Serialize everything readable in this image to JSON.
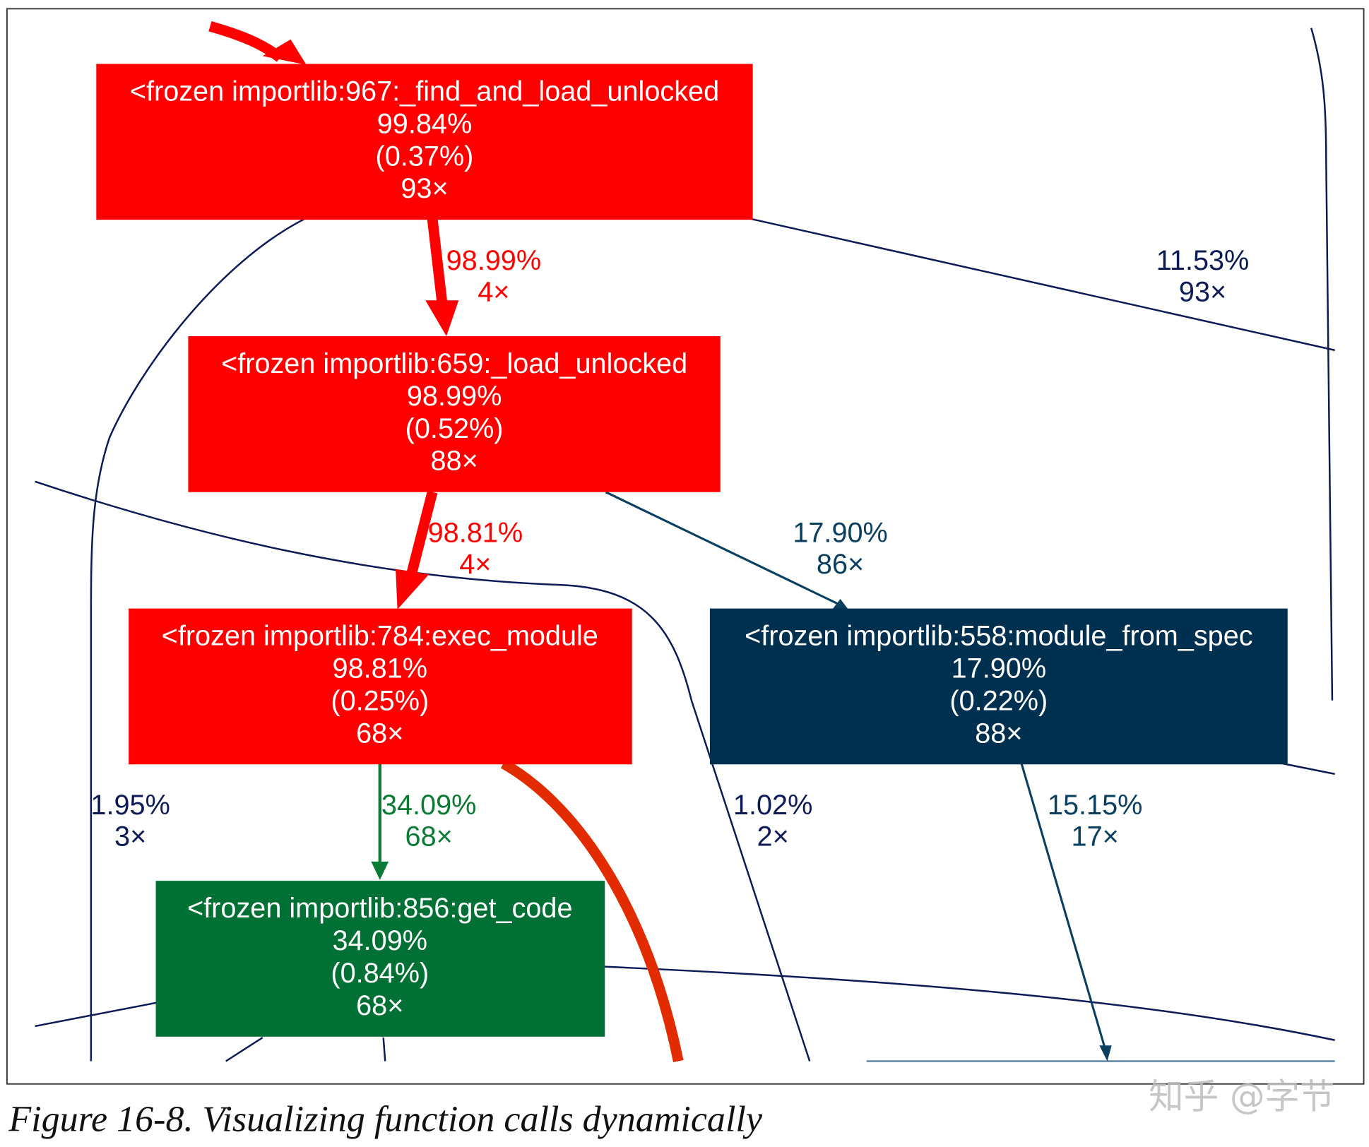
{
  "colors": {
    "red_node": "#ff0000",
    "navy_node": "#003050",
    "green_node": "#007034",
    "red_edge": "#ff0000",
    "orange_edge": "#e22c00",
    "navy_edge": "#0d1a55",
    "teal_edge": "#0a3f60",
    "green_edge": "#0b7a35",
    "node_text": "#ffffff",
    "frame": "#333333"
  },
  "nodes": [
    {
      "id": "find_and_load_unlocked",
      "title": "<frozen importlib:967:_find_and_load_unlocked",
      "total": "99.84%",
      "self": "(0.37%)",
      "calls": "93×",
      "color": "#ff0000"
    },
    {
      "id": "load_unlocked",
      "title": "<frozen importlib:659:_load_unlocked",
      "total": "98.99%",
      "self": "(0.52%)",
      "calls": "88×",
      "color": "#ff0000"
    },
    {
      "id": "exec_module",
      "title": "<frozen importlib:784:exec_module",
      "total": "98.81%",
      "self": "(0.25%)",
      "calls": "68×",
      "color": "#ff0000"
    },
    {
      "id": "module_from_spec",
      "title": "<frozen importlib:558:module_from_spec",
      "total": "17.90%",
      "self": "(0.22%)",
      "calls": "88×",
      "color": "#003050"
    },
    {
      "id": "get_code",
      "title": "<frozen importlib:856:get_code",
      "total": "34.09%",
      "self": "(0.84%)",
      "calls": "68×",
      "color": "#007034"
    }
  ],
  "edge_labels": [
    {
      "id": "find_to_load",
      "percent": "98.99%",
      "calls": "4×",
      "color": "#ff0000"
    },
    {
      "id": "find_right",
      "percent": "11.53%",
      "calls": "93×",
      "color": "#0d1a55"
    },
    {
      "id": "load_to_exec",
      "percent": "98.81%",
      "calls": "4×",
      "color": "#ff0000"
    },
    {
      "id": "load_to_spec",
      "percent": "17.90%",
      "calls": "86×",
      "color": "#0a3f60"
    },
    {
      "id": "left_curve",
      "percent": "1.95%",
      "calls": "3×",
      "color": "#0d1a55"
    },
    {
      "id": "exec_to_getcode",
      "percent": "34.09%",
      "calls": "68×",
      "color": "#0b7a35"
    },
    {
      "id": "middle_curve",
      "percent": "1.02%",
      "calls": "2×",
      "color": "#0d1a55"
    },
    {
      "id": "spec_down",
      "percent": "15.15%",
      "calls": "17×",
      "color": "#0a3f60"
    }
  ],
  "caption": "Figure 16-8. Visualizing function calls dynamically",
  "watermark": "知乎 @字节"
}
